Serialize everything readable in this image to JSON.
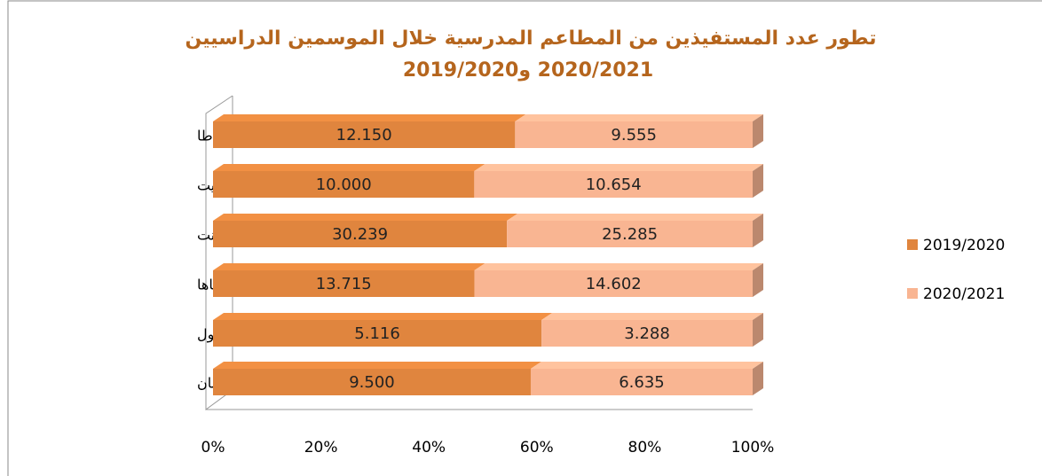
{
  "chart_data": {
    "type": "bar_stacked_percent_horizontal",
    "title": "تطور عدد المستفيذين من المطاعم المدرسية خلال الموسمين الدراسيين",
    "subtitle": "2020/2021 و2019/2020",
    "categories": [
      "طاطا",
      "تزنيت",
      "تارودانت",
      "اشتوكة أيت باها",
      "إنزكان أيت ملول",
      "أكادير إداوتنان"
    ],
    "series": [
      {
        "name": "2019/2020",
        "color": "#e0853e",
        "values": [
          12150,
          10000,
          30239,
          13715,
          5116,
          9500
        ],
        "value_labels": [
          "12.150",
          "10.000",
          "30.239",
          "13.715",
          "5.116",
          "9.500"
        ]
      },
      {
        "name": "2020/2021",
        "color": "#f9b592",
        "values": [
          9555,
          10654,
          25285,
          14602,
          3288,
          6635
        ],
        "value_labels": [
          "9.555",
          "10.654",
          "25.285",
          "14.602",
          "3.288",
          "6.635"
        ]
      }
    ],
    "xlim": [
      0,
      100
    ],
    "xticks": [
      {
        "value": 0,
        "label": "0%"
      },
      {
        "value": 20,
        "label": "20%"
      },
      {
        "value": 40,
        "label": "40%"
      },
      {
        "value": 60,
        "label": "60%"
      },
      {
        "value": 80,
        "label": "80%"
      },
      {
        "value": 100,
        "label": "100%"
      }
    ],
    "legend": "right",
    "title_color": "#b5651d"
  }
}
